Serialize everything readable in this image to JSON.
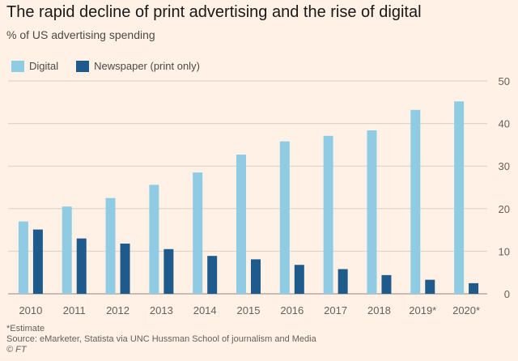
{
  "header": {
    "title": "The rapid decline of print advertising and the rise of digital",
    "subtitle": "% of US advertising spending"
  },
  "legend": {
    "digital_label": "Digital",
    "newspaper_label": "Newspaper (print only)"
  },
  "colors": {
    "digital": "#8FCCE3",
    "newspaper": "#1E5A8C",
    "background": "#FFF1E5",
    "gridline": "#D9CFC6",
    "axis_text": "#66605C"
  },
  "chart_data": {
    "type": "bar",
    "categories": [
      "2010",
      "2011",
      "2012",
      "2013",
      "2014",
      "2015",
      "2016",
      "2017",
      "2018",
      "2019*",
      "2020*"
    ],
    "series": [
      {
        "name": "Digital",
        "values": [
          17.0,
          20.5,
          22.5,
          25.6,
          28.5,
          32.7,
          35.8,
          37.1,
          38.4,
          43.2,
          45.2
        ]
      },
      {
        "name": "Newspaper (print only)",
        "values": [
          15.1,
          13.0,
          11.8,
          10.5,
          8.9,
          8.1,
          6.8,
          5.8,
          4.4,
          3.3,
          2.5
        ]
      }
    ],
    "title": "The rapid decline of print advertising and the rise of digital",
    "ylabel": "% of US advertising spending",
    "ylim": [
      0,
      50
    ],
    "yticks": [
      0,
      10,
      20,
      30,
      40,
      50
    ],
    "y_axis_side": "right",
    "grid": true,
    "legend_position": "top-left"
  },
  "footnotes": {
    "estimate": "*Estimate",
    "source": "Source: eMarketer, Statista via UNC Hussman School of journalism and Media",
    "credit": "© FT"
  }
}
